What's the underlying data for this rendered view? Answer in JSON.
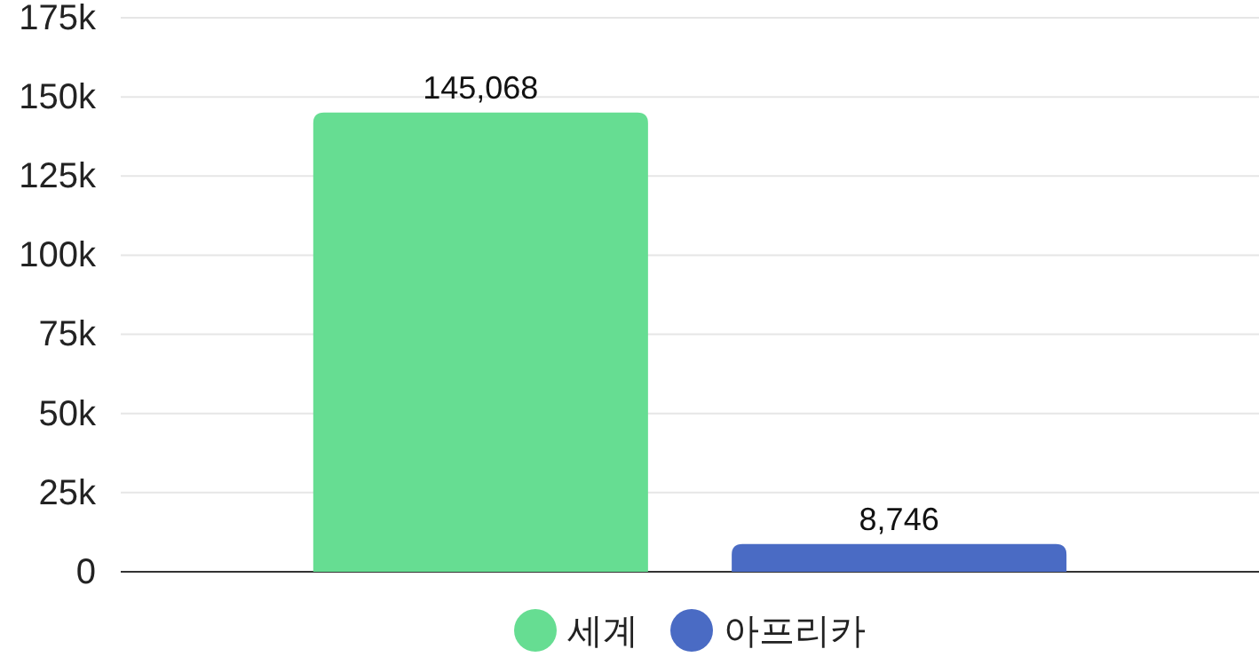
{
  "chart_data": {
    "type": "bar",
    "categories": [
      null
    ],
    "series": [
      {
        "name": "세계",
        "color": "#66dd92",
        "values": [
          145068
        ],
        "value_labels": [
          "145,068"
        ]
      },
      {
        "name": "아프리카",
        "color": "#4a6bc4",
        "values": [
          8746
        ],
        "value_labels": [
          "8,746"
        ]
      }
    ],
    "ylim": [
      0,
      175000
    ],
    "yticks": [
      0,
      {
        "value": 25000,
        "label": "25k"
      },
      {
        "value": 50000,
        "label": "50k"
      },
      {
        "value": 75000,
        "label": "75k"
      },
      {
        "value": 100000,
        "label": "100k"
      },
      {
        "value": 125000,
        "label": "125k"
      },
      {
        "value": 150000,
        "label": "150k"
      },
      {
        "value": 175000,
        "label": "175k"
      }
    ],
    "grid": "y",
    "legend": "bottom"
  }
}
